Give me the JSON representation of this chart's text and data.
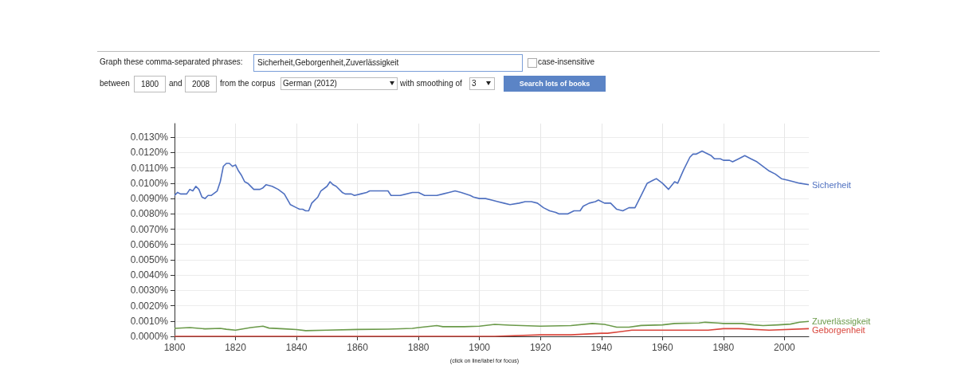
{
  "chart_data": {
    "type": "line",
    "xlim": [
      1800,
      2008
    ],
    "xticks": [
      1800,
      1820,
      1840,
      1860,
      1880,
      1900,
      1920,
      1940,
      1960,
      1980,
      2000
    ],
    "ylim": [
      0,
      0.0139
    ],
    "yticks": [
      {
        "value": 0,
        "label": "0.0000%"
      },
      {
        "value": 0.001,
        "label": "0.0010%"
      },
      {
        "value": 0.002,
        "label": "0.0020%"
      },
      {
        "value": 0.003,
        "label": "0.0030%"
      },
      {
        "value": 0.004,
        "label": "0.0040%"
      },
      {
        "value": 0.005,
        "label": "0.0050%"
      },
      {
        "value": 0.006,
        "label": "0.0060%"
      },
      {
        "value": 0.007,
        "label": "0.0070%"
      },
      {
        "value": 0.008,
        "label": "0.0080%"
      },
      {
        "value": 0.009,
        "label": "0.0090%"
      },
      {
        "value": 0.01,
        "label": "0.0100%"
      },
      {
        "value": 0.011,
        "label": "0.0110%"
      },
      {
        "value": 0.012,
        "label": "0.0120%"
      },
      {
        "value": 0.013,
        "label": "0.0130%"
      }
    ],
    "grid": true,
    "legend": false,
    "marker": "none",
    "line_style": "solid",
    "series": [
      {
        "name": "Sicherheit",
        "color": "#4f70c0",
        "x": [
          1800,
          1801,
          1802,
          1804,
          1805,
          1806,
          1807,
          1808,
          1809,
          1810,
          1811,
          1812,
          1814,
          1815,
          1816,
          1817,
          1818,
          1819,
          1820,
          1821,
          1822,
          1823,
          1824,
          1826,
          1828,
          1829,
          1830,
          1832,
          1834,
          1836,
          1838,
          1840,
          1841,
          1842,
          1843,
          1844,
          1845,
          1847,
          1848,
          1850,
          1851,
          1852,
          1853,
          1855,
          1856,
          1858,
          1859,
          1861,
          1863,
          1864,
          1866,
          1868,
          1870,
          1871,
          1874,
          1878,
          1880,
          1882,
          1884,
          1886,
          1888,
          1890,
          1892,
          1894,
          1897,
          1898,
          1900,
          1902,
          1904,
          1906,
          1908,
          1910,
          1913,
          1915,
          1917,
          1919,
          1921,
          1923,
          1925,
          1926,
          1929,
          1931,
          1933,
          1934,
          1936,
          1938,
          1939,
          1941,
          1943,
          1945,
          1947,
          1949,
          1951,
          1953,
          1955,
          1957,
          1958,
          1960,
          1962,
          1964,
          1965,
          1967,
          1969,
          1970,
          1971,
          1973,
          1974,
          1976,
          1977,
          1979,
          1980,
          1982,
          1983,
          1985,
          1987,
          1989,
          1991,
          1993,
          1995,
          1997,
          1999,
          2001,
          2003,
          2005,
          2008
        ],
        "values": [
          0.0092,
          0.0094,
          0.0093,
          0.0093,
          0.0096,
          0.0095,
          0.0098,
          0.0096,
          0.0091,
          0.009,
          0.0092,
          0.0092,
          0.0095,
          0.0101,
          0.0111,
          0.0113,
          0.0113,
          0.0111,
          0.0112,
          0.0108,
          0.0105,
          0.0101,
          0.01,
          0.0096,
          0.0096,
          0.0097,
          0.0099,
          0.0098,
          0.0096,
          0.0093,
          0.0086,
          0.0084,
          0.0083,
          0.0083,
          0.0082,
          0.0082,
          0.0087,
          0.0091,
          0.0095,
          0.0098,
          0.0101,
          0.0099,
          0.0098,
          0.0094,
          0.0093,
          0.0093,
          0.0092,
          0.0093,
          0.0094,
          0.0095,
          0.0095,
          0.0095,
          0.0095,
          0.0092,
          0.0092,
          0.0094,
          0.0094,
          0.0092,
          0.0092,
          0.0092,
          0.0093,
          0.0094,
          0.0095,
          0.0094,
          0.0092,
          0.0091,
          0.009,
          0.009,
          0.0089,
          0.0088,
          0.0087,
          0.0086,
          0.0087,
          0.0088,
          0.0088,
          0.0087,
          0.0084,
          0.0082,
          0.0081,
          0.008,
          0.008,
          0.0082,
          0.0082,
          0.0085,
          0.0087,
          0.0088,
          0.0089,
          0.0087,
          0.0087,
          0.0083,
          0.0082,
          0.0084,
          0.0084,
          0.0092,
          0.01,
          0.0102,
          0.0103,
          0.01,
          0.0096,
          0.0101,
          0.01,
          0.0109,
          0.0117,
          0.0119,
          0.0119,
          0.0121,
          0.012,
          0.0118,
          0.0116,
          0.0116,
          0.0115,
          0.0115,
          0.0114,
          0.0116,
          0.0118,
          0.0116,
          0.0114,
          0.0111,
          0.0108,
          0.0106,
          0.0103,
          0.0102,
          0.0101,
          0.01,
          0.0099
        ]
      },
      {
        "name": "Zuverlässigkeit",
        "color": "#6b9a4a",
        "x": [
          1800,
          1805,
          1810,
          1815,
          1817,
          1820,
          1825,
          1829,
          1831,
          1836,
          1840,
          1843,
          1850,
          1860,
          1870,
          1878,
          1880,
          1886,
          1888,
          1895,
          1900,
          1905,
          1910,
          1920,
          1930,
          1937,
          1941,
          1945,
          1949,
          1953,
          1960,
          1964,
          1972,
          1974,
          1978,
          1980,
          1986,
          1990,
          1993,
          1998,
          2002,
          2005,
          2008
        ],
        "values": [
          0.00052,
          0.00057,
          0.00049,
          0.00052,
          0.00046,
          0.0004,
          0.00057,
          0.00066,
          0.00054,
          0.00049,
          0.00044,
          0.00037,
          0.0004,
          0.00045,
          0.00047,
          0.00052,
          0.00057,
          0.0007,
          0.00063,
          0.00063,
          0.00066,
          0.00078,
          0.00073,
          0.00066,
          0.0007,
          0.00084,
          0.00078,
          0.0006,
          0.0006,
          0.00071,
          0.00075,
          0.00084,
          0.00087,
          0.00092,
          0.00087,
          0.00084,
          0.00084,
          0.00075,
          0.0007,
          0.00075,
          0.0008,
          0.00092,
          0.00098
        ]
      },
      {
        "name": "Geborgenheit",
        "color": "#d9463c",
        "x": [
          1800,
          1850,
          1905,
          1920,
          1930,
          1940,
          1942,
          1946,
          1950,
          1957,
          1965,
          1975,
          1980,
          1985,
          1995,
          2008
        ],
        "values": [
          0,
          0,
          0,
          0.0001,
          0.0001,
          0.0002,
          0.0002,
          0.0003,
          0.0004,
          0.0004,
          0.0004,
          0.0004,
          0.0005,
          0.0005,
          0.0004,
          0.0005
        ]
      }
    ],
    "annotations": [
      "Graph these comma-separated phrases:",
      "Sicherheit,Geborgenheit,Zuverlässigkeit",
      "case-insensitive",
      "between",
      "1800",
      "and",
      "2008",
      "from the corpus",
      "German (2012)",
      "with smoothing of",
      "3",
      "Search lots of books",
      "(click on line/label for focus)"
    ]
  }
}
